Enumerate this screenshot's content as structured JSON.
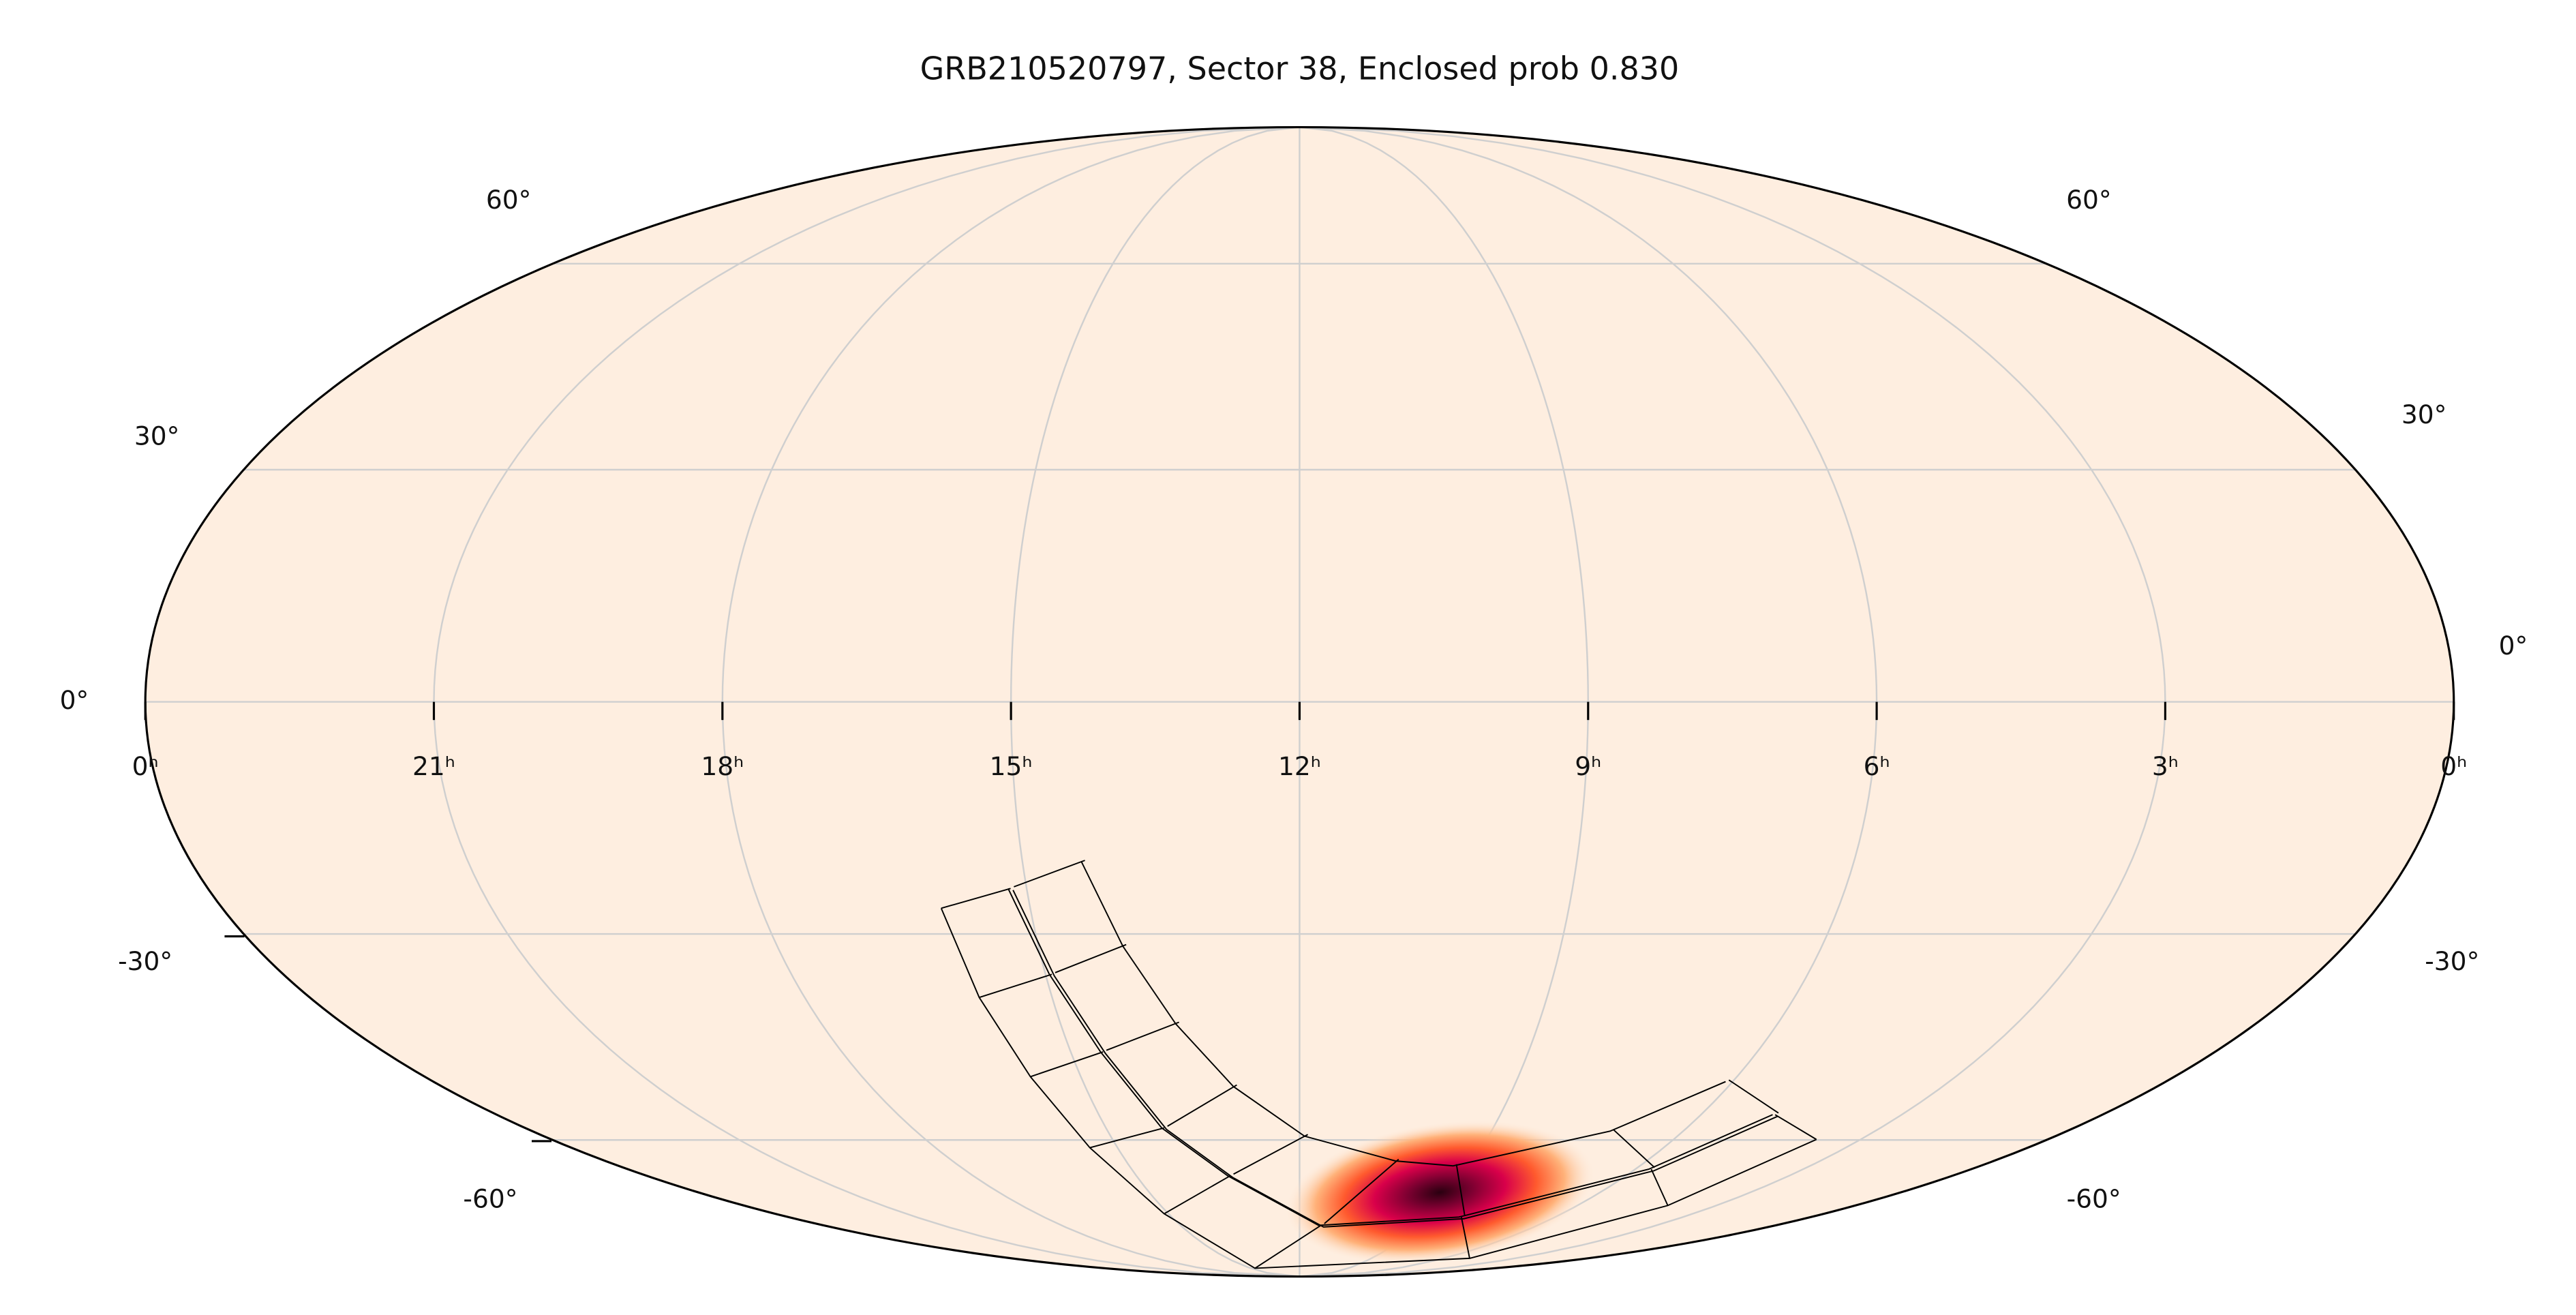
{
  "title": "GRB210520797, Sector 38, Enclosed prob 0.830",
  "ra_labels": [
    "0ʰ",
    "21ʰ",
    "18ʰ",
    "15ʰ",
    "12ʰ",
    "9ʰ",
    "6ʰ",
    "3ʰ",
    "0ʰ"
  ],
  "dec_labels": [
    "60°",
    "30°",
    "0°",
    "-30°",
    "-60°"
  ]
}
